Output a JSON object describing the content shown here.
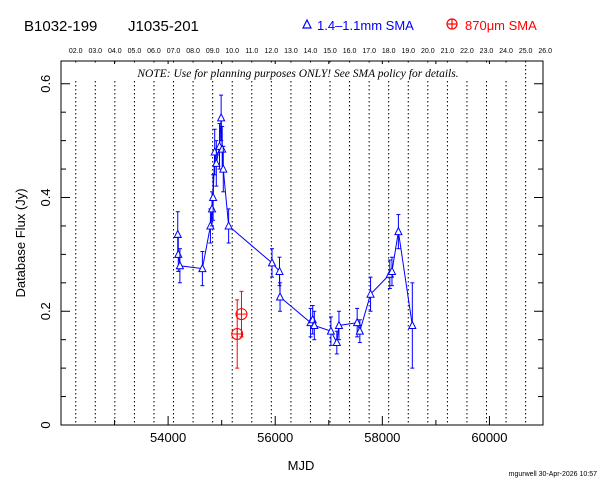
{
  "header": {
    "source_name": "B1032-199",
    "alt_name": "J1035-201",
    "legend_blue": "1.4–1.1mm SMA",
    "legend_red": "870μm SMA"
  },
  "note": "NOTE: Use for planning purposes ONLY! See SMA policy for details.",
  "footer": "mgurwell 30-Apr-2026 10:57",
  "colors": {
    "blue": "#0000ff",
    "red": "#ff0000",
    "axis": "#000000"
  },
  "chart_data": {
    "type": "scatter",
    "xlabel": "MJD",
    "ylabel": "Database Flux (Jy)",
    "xlim": [
      52000,
      61000
    ],
    "ylim": [
      0,
      0.64
    ],
    "x_ticks": [
      54000,
      56000,
      58000,
      60000
    ],
    "y_ticks": [
      0,
      0.2,
      0.4,
      0.6
    ],
    "y_tick_labels": [
      "0",
      "0.2",
      "0.4",
      "0.6"
    ],
    "year_markers": [
      {
        "label": "02.0",
        "mjd": 52275
      },
      {
        "label": "03.0",
        "mjd": 52640
      },
      {
        "label": "04.0",
        "mjd": 53005
      },
      {
        "label": "05.0",
        "mjd": 53371
      },
      {
        "label": "06.0",
        "mjd": 53736
      },
      {
        "label": "07.0",
        "mjd": 54101
      },
      {
        "label": "08.0",
        "mjd": 54466
      },
      {
        "label": "09.0",
        "mjd": 54832
      },
      {
        "label": "10.0",
        "mjd": 55197
      },
      {
        "label": "11.0",
        "mjd": 55562
      },
      {
        "label": "12.0",
        "mjd": 55927
      },
      {
        "label": "13.0",
        "mjd": 56293
      },
      {
        "label": "14.0",
        "mjd": 56658
      },
      {
        "label": "15.0",
        "mjd": 57023
      },
      {
        "label": "16.0",
        "mjd": 57388
      },
      {
        "label": "17.0",
        "mjd": 57754
      },
      {
        "label": "18.0",
        "mjd": 58119
      },
      {
        "label": "19.0",
        "mjd": 58484
      },
      {
        "label": "20.0",
        "mjd": 58849
      },
      {
        "label": "21.0",
        "mjd": 59215
      },
      {
        "label": "22.0",
        "mjd": 59580
      },
      {
        "label": "23.0",
        "mjd": 59945
      },
      {
        "label": "24.0",
        "mjd": 60310
      },
      {
        "label": "25.0",
        "mjd": 60676
      },
      {
        "label": "26.0",
        "mjd": 61041
      }
    ],
    "series": [
      {
        "name": "1.4–1.1mm SMA",
        "marker": "triangle",
        "connected": true,
        "points": [
          {
            "x": 54180,
            "y": 0.335,
            "err": 0.04
          },
          {
            "x": 54190,
            "y": 0.3,
            "err": 0.03
          },
          {
            "x": 54220,
            "y": 0.28,
            "err": 0.03
          },
          {
            "x": 54640,
            "y": 0.275,
            "err": 0.03
          },
          {
            "x": 54790,
            "y": 0.35,
            "err": 0.03
          },
          {
            "x": 54820,
            "y": 0.38,
            "err": 0.03
          },
          {
            "x": 54840,
            "y": 0.4,
            "err": 0.04
          },
          {
            "x": 54870,
            "y": 0.48,
            "err": 0.04
          },
          {
            "x": 54900,
            "y": 0.46,
            "err": 0.04
          },
          {
            "x": 54960,
            "y": 0.49,
            "err": 0.04
          },
          {
            "x": 54990,
            "y": 0.54,
            "err": 0.04
          },
          {
            "x": 55010,
            "y": 0.485,
            "err": 0.04
          },
          {
            "x": 55030,
            "y": 0.45,
            "err": 0.04
          },
          {
            "x": 55130,
            "y": 0.35,
            "err": 0.03
          },
          {
            "x": 55940,
            "y": 0.285,
            "err": 0.025
          },
          {
            "x": 56080,
            "y": 0.27,
            "err": 0.025
          },
          {
            "x": 56090,
            "y": 0.225,
            "err": 0.025
          },
          {
            "x": 56660,
            "y": 0.18,
            "err": 0.025
          },
          {
            "x": 56700,
            "y": 0.185,
            "err": 0.025
          },
          {
            "x": 56730,
            "y": 0.175,
            "err": 0.025
          },
          {
            "x": 57040,
            "y": 0.165,
            "err": 0.025
          },
          {
            "x": 57150,
            "y": 0.145,
            "err": 0.02
          },
          {
            "x": 57190,
            "y": 0.175,
            "err": 0.025
          },
          {
            "x": 57530,
            "y": 0.18,
            "err": 0.025
          },
          {
            "x": 57580,
            "y": 0.165,
            "err": 0.02
          },
          {
            "x": 57780,
            "y": 0.23,
            "err": 0.03
          },
          {
            "x": 58140,
            "y": 0.265,
            "err": 0.025
          },
          {
            "x": 58180,
            "y": 0.27,
            "err": 0.025
          },
          {
            "x": 58300,
            "y": 0.34,
            "err": 0.03
          },
          {
            "x": 58560,
            "y": 0.175,
            "err": 0.075
          }
        ]
      },
      {
        "name": "870μm SMA",
        "marker": "circle-plus",
        "connected": false,
        "points": [
          {
            "x": 55290,
            "y": 0.16,
            "err": 0.06
          },
          {
            "x": 55370,
            "y": 0.195,
            "err": 0.04
          }
        ]
      }
    ]
  }
}
